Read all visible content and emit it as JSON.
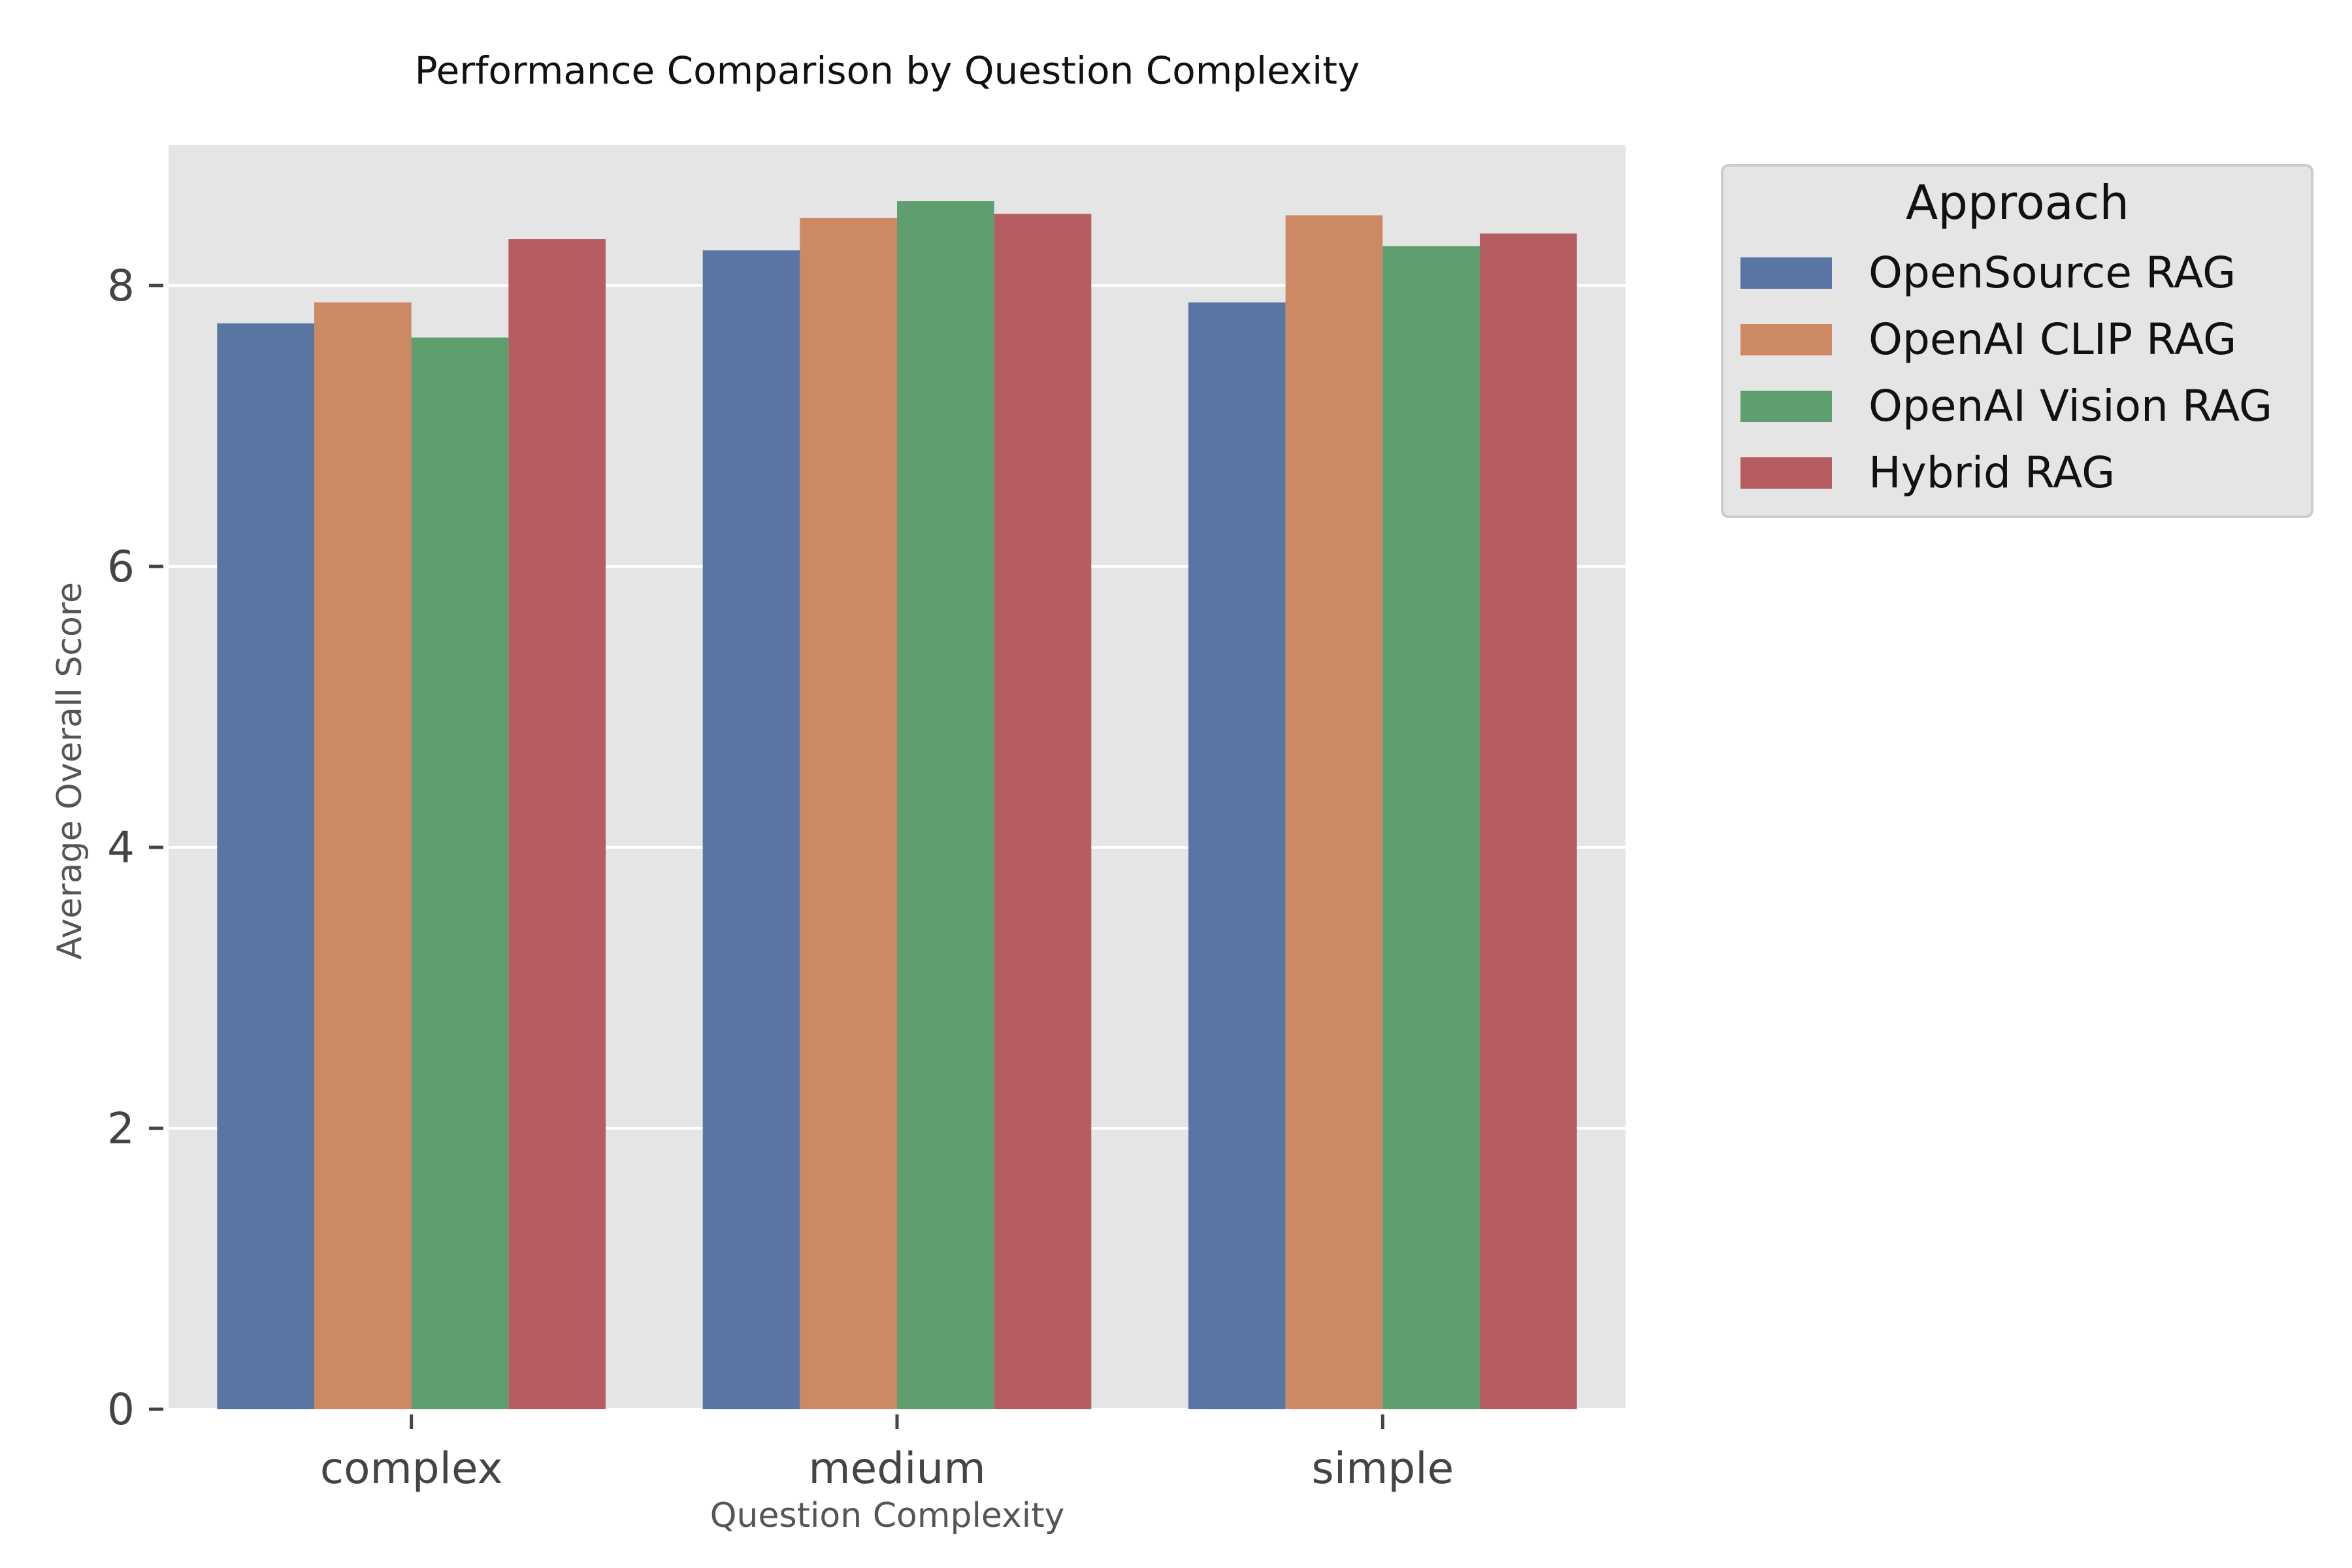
{
  "chart_data": {
    "type": "bar",
    "title": "Performance Comparison by Question Complexity",
    "xlabel": "Question Complexity",
    "ylabel": "Average Overall Score",
    "categories": [
      "complex",
      "medium",
      "simple"
    ],
    "series": [
      {
        "name": "OpenSource RAG",
        "color": "#5975a4",
        "values": [
          7.73,
          8.25,
          7.88
        ]
      },
      {
        "name": "OpenAI CLIP RAG",
        "color": "#cc8963",
        "values": [
          7.88,
          8.48,
          8.5
        ]
      },
      {
        "name": "OpenAI Vision RAG",
        "color": "#5f9e6e",
        "values": [
          7.63,
          8.6,
          8.28
        ]
      },
      {
        "name": "Hybrid RAG",
        "color": "#b55d60",
        "values": [
          8.33,
          8.51,
          8.37
        ]
      }
    ],
    "ylim": [
      0,
      9.0
    ],
    "yticks": [
      0,
      2,
      4,
      6,
      8
    ],
    "grid": true,
    "legend": {
      "title": "Approach",
      "placement": "outside-top-right"
    },
    "colors": {
      "plot_background": "#e5e5e5",
      "grid": "#ffffff",
      "legend_background": "#e5e5e5"
    }
  }
}
